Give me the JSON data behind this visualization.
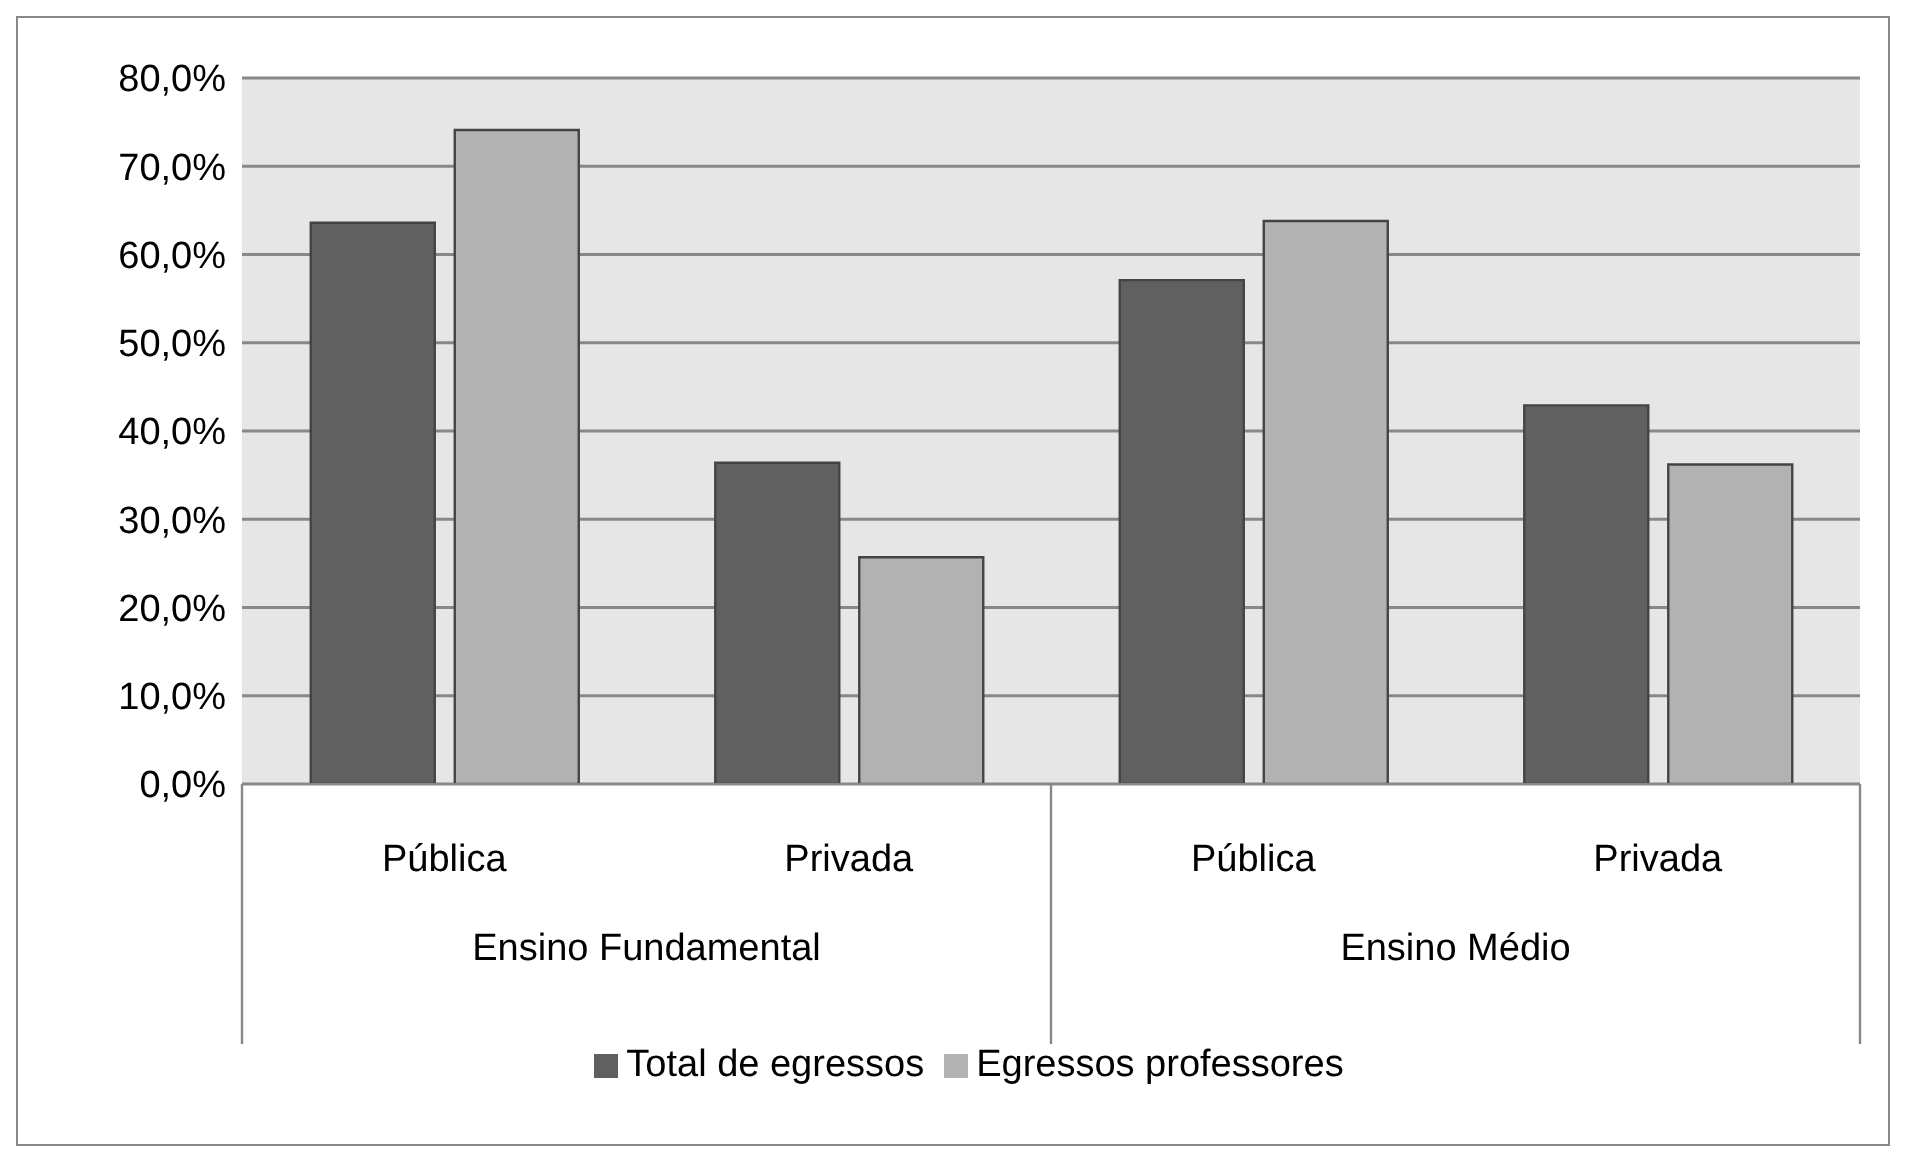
{
  "chart_data": {
    "type": "bar",
    "categories": [
      "Pública",
      "Privada",
      "Pública",
      "Privada"
    ],
    "series": [
      {
        "name": "Total de egressos",
        "color": "#606060",
        "values": [
          63.6,
          36.4,
          57.1,
          42.9
        ]
      },
      {
        "name": "Egressos professores",
        "color": "#b2b2b2",
        "values": [
          74.1,
          25.7,
          63.8,
          36.2
        ]
      }
    ],
    "ylim": [
      0,
      80
    ],
    "yticks": [
      {
        "value": 0,
        "label": "0,0%"
      },
      {
        "value": 10,
        "label": "10,0%"
      },
      {
        "value": 20,
        "label": "20,0%"
      },
      {
        "value": 30,
        "label": "30,0%"
      },
      {
        "value": 40,
        "label": "40,0%"
      },
      {
        "value": 50,
        "label": "50,0%"
      },
      {
        "value": 60,
        "label": "60,0%"
      },
      {
        "value": 70,
        "label": "70,0%"
      },
      {
        "value": 80,
        "label": "80,0%"
      }
    ],
    "annotations": [
      "Ensino Fundamental",
      "Ensino Médio"
    ],
    "grid": "y",
    "legend": "bottom"
  }
}
